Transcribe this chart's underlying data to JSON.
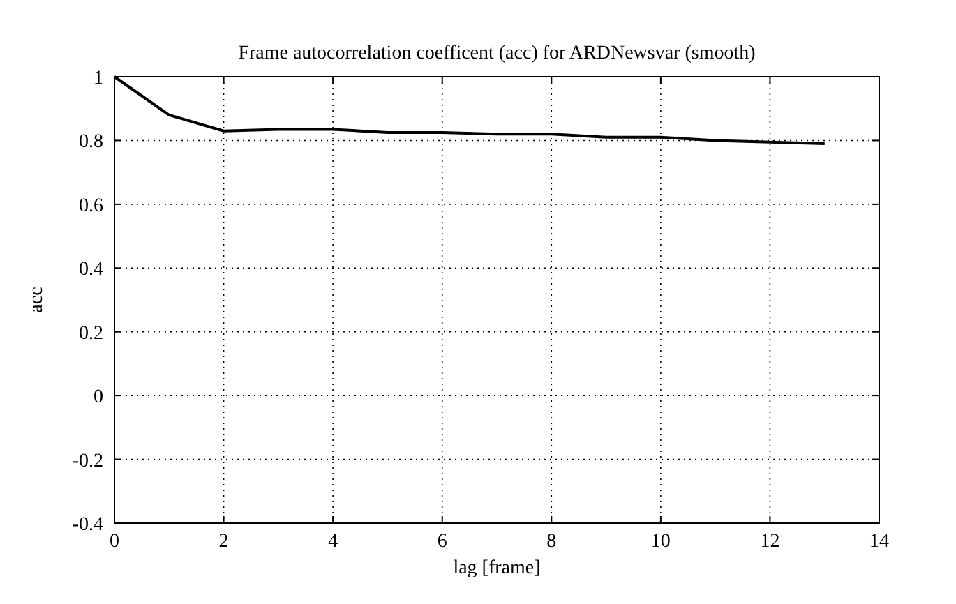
{
  "chart_data": {
    "type": "line",
    "title": "Frame autocorrelation coefficent (acc) for ARDNewsvar (smooth)",
    "xlabel": "lag [frame]",
    "ylabel": "acc",
    "x": [
      0,
      1,
      2,
      3,
      4,
      5,
      6,
      7,
      8,
      9,
      10,
      11,
      12,
      13
    ],
    "series": [
      {
        "color": "#000000",
        "values": [
          1,
          0.88,
          0.83,
          0.835,
          0.835,
          0.825,
          0.825,
          0.82,
          0.82,
          0.81,
          0.81,
          0.8,
          0.795,
          0.79
        ]
      }
    ],
    "xlim": [
      0,
      14
    ],
    "xticks": [
      0,
      2,
      4,
      6,
      8,
      10,
      12,
      14
    ],
    "ylim": [
      -0.4,
      1
    ],
    "yticks": [
      -0.4,
      -0.2,
      0,
      0.2,
      0.4,
      0.6,
      0.8,
      1
    ],
    "grid": true,
    "marker": "none",
    "line_style": "solid"
  }
}
